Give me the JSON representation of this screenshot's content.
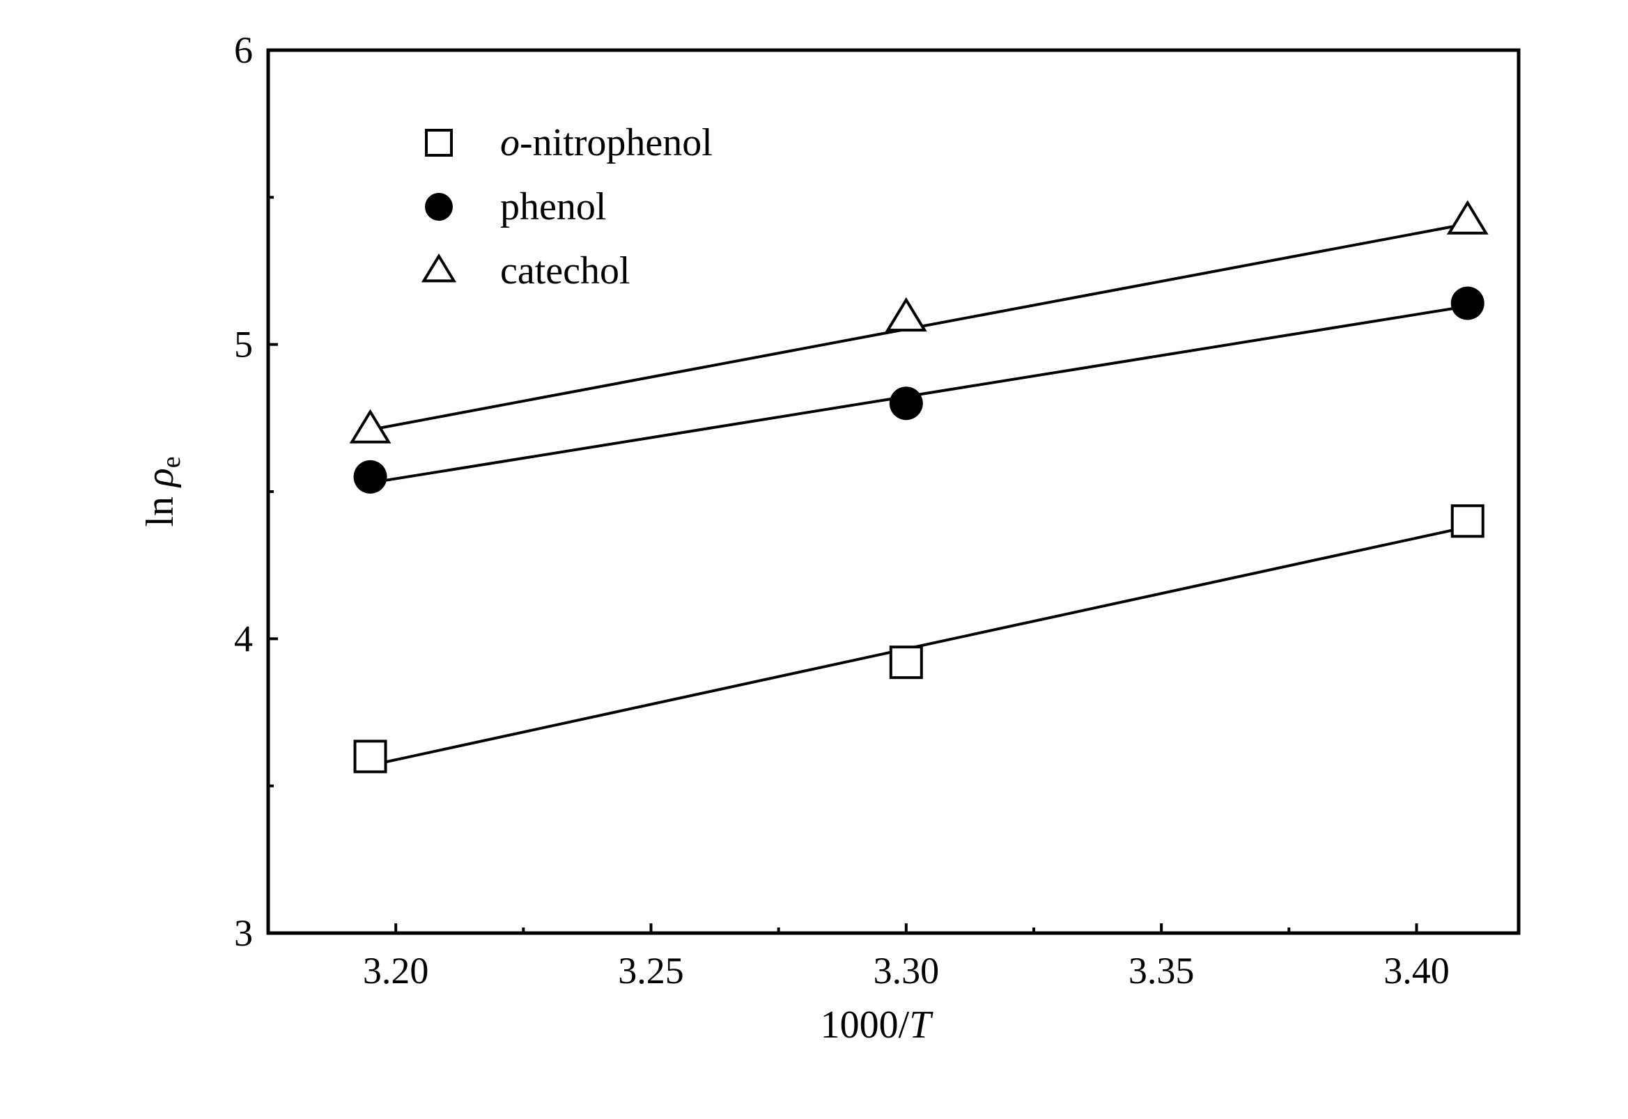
{
  "chart_data": {
    "type": "scatter",
    "xlabel": {
      "prefix": "1000/",
      "var": "T"
    },
    "ylabel": {
      "main": "ln ",
      "greek": "ρ",
      "sub": "e"
    },
    "xlim": [
      3.175,
      3.42
    ],
    "ylim": [
      3,
      6
    ],
    "xticks": [
      3.2,
      3.25,
      3.3,
      3.35,
      3.4
    ],
    "xtick_labels": [
      "3.20",
      "3.25",
      "3.30",
      "3.35",
      "3.40"
    ],
    "yticks": [
      3,
      4,
      5,
      6
    ],
    "ytick_labels": [
      "3",
      "4",
      "5",
      "6"
    ],
    "grid": false,
    "legend_position": "top-left",
    "series": [
      {
        "name": "o-nitrophenol",
        "name_parts": {
          "italic": "o",
          "rest": "-nitrophenol"
        },
        "marker": "open-square",
        "x": [
          3.195,
          3.3,
          3.41
        ],
        "y": [
          3.6,
          3.92,
          4.4
        ],
        "fit": {
          "x": [
            3.195,
            3.41
          ],
          "y": [
            3.57,
            4.38
          ]
        }
      },
      {
        "name": "phenol",
        "name_parts": {
          "italic": "",
          "rest": "phenol"
        },
        "marker": "filled-circle",
        "x": [
          3.195,
          3.3,
          3.41
        ],
        "y": [
          4.55,
          4.8,
          5.14
        ],
        "fit": {
          "x": [
            3.195,
            3.41
          ],
          "y": [
            4.53,
            5.13
          ]
        }
      },
      {
        "name": "catechol",
        "name_parts": {
          "italic": "",
          "rest": "catechol"
        },
        "marker": "open-triangle",
        "x": [
          3.195,
          3.3,
          3.41
        ],
        "y": [
          4.71,
          5.09,
          5.42
        ],
        "fit": {
          "x": [
            3.195,
            3.41
          ],
          "y": [
            4.71,
            5.41
          ]
        }
      }
    ]
  }
}
